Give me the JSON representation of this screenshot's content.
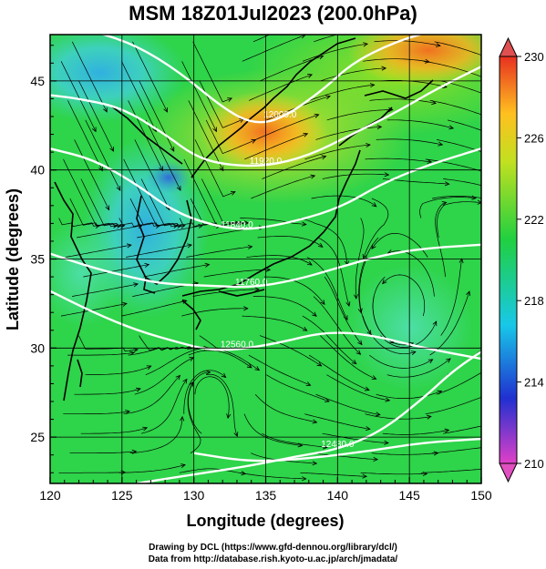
{
  "title": "MSM 18Z01Jul2023 (200.0hPa)",
  "xaxis": {
    "label": "Longitude (degrees)",
    "range": [
      120,
      150
    ],
    "ticks": [
      120,
      125,
      130,
      135,
      140,
      145,
      150
    ]
  },
  "yaxis": {
    "label": "Latitude (degrees)",
    "range": [
      22.4,
      47.6
    ],
    "ticks": [
      25,
      30,
      35,
      40,
      45
    ]
  },
  "colorbar": {
    "range": [
      210,
      230
    ],
    "labels": [
      230,
      226,
      222,
      218,
      214,
      210
    ],
    "colors": [
      "#e040c8",
      "#2030d0",
      "#18c8e8",
      "#20d040",
      "#c0e020",
      "#ffc020",
      "#e83020"
    ]
  },
  "contours": [
    {
      "label": "12000.0",
      "points": [
        [
          123,
          47.8
        ],
        [
          126,
          47.0
        ],
        [
          129,
          45.5
        ],
        [
          132,
          43.5
        ],
        [
          134,
          42.6
        ],
        [
          136,
          42.8
        ],
        [
          139,
          44.5
        ],
        [
          141,
          46.0
        ],
        [
          144,
          47.2
        ],
        [
          147,
          47.9
        ]
      ]
    },
    {
      "label": "11920.0",
      "points": [
        [
          120,
          44.2
        ],
        [
          122,
          44.0
        ],
        [
          125,
          43.5
        ],
        [
          128,
          42.0
        ],
        [
          130,
          40.8
        ],
        [
          132,
          40.3
        ],
        [
          135,
          40.2
        ],
        [
          138,
          40.8
        ],
        [
          141,
          42.0
        ],
        [
          144,
          43.2
        ],
        [
          147,
          44.6
        ],
        [
          150,
          45.8
        ]
      ]
    },
    {
      "label": "11840.0",
      "points": [
        [
          120,
          41.2
        ],
        [
          123,
          40.6
        ],
        [
          126,
          39.2
        ],
        [
          128,
          38.0
        ],
        [
          130,
          37.2
        ],
        [
          133,
          36.6
        ],
        [
          136,
          36.9
        ],
        [
          140,
          37.8
        ],
        [
          143,
          39.2
        ],
        [
          146,
          40.2
        ],
        [
          150,
          41.2
        ]
      ]
    },
    {
      "label": "11760.0",
      "points": [
        [
          120,
          35.3
        ],
        [
          123,
          34.5
        ],
        [
          126,
          33.9
        ],
        [
          128,
          33.6
        ],
        [
          131,
          33.5
        ],
        [
          134,
          33.4
        ],
        [
          137,
          33.8
        ],
        [
          140,
          34.5
        ],
        [
          143,
          35.2
        ],
        [
          146,
          35.6
        ],
        [
          150,
          35.8
        ]
      ]
    },
    {
      "label": "12560.0",
      "points": [
        [
          120,
          33.2
        ],
        [
          123,
          32.0
        ],
        [
          126,
          31.0
        ],
        [
          129,
          30.3
        ],
        [
          131,
          29.9
        ],
        [
          133,
          29.9
        ],
        [
          136,
          30.3
        ],
        [
          139,
          30.9
        ],
        [
          142,
          30.8
        ],
        [
          146,
          30.0
        ],
        [
          150,
          29.4
        ]
      ]
    },
    {
      "label": "12480.0",
      "points": [
        [
          126,
          22.4
        ],
        [
          130,
          22.9
        ],
        [
          134,
          23.4
        ],
        [
          137,
          23.9
        ],
        [
          140,
          24.3
        ],
        [
          143,
          25.3
        ],
        [
          146,
          27.2
        ],
        [
          148,
          28.7
        ],
        [
          150,
          29.8
        ]
      ]
    },
    {
      "label": "",
      "points": [
        [
          130,
          24.1
        ],
        [
          134,
          23.6
        ],
        [
          138,
          23.8
        ],
        [
          142,
          24.2
        ],
        [
          146,
          24.7
        ],
        [
          150,
          24.9
        ]
      ]
    }
  ],
  "credits": [
    "Drawing by DCL (https://www.gfd-dennou.org/library/dcl/)",
    "Data from http://database.rish.kyoto-u.ac.jp/arch/jmadata/"
  ]
}
